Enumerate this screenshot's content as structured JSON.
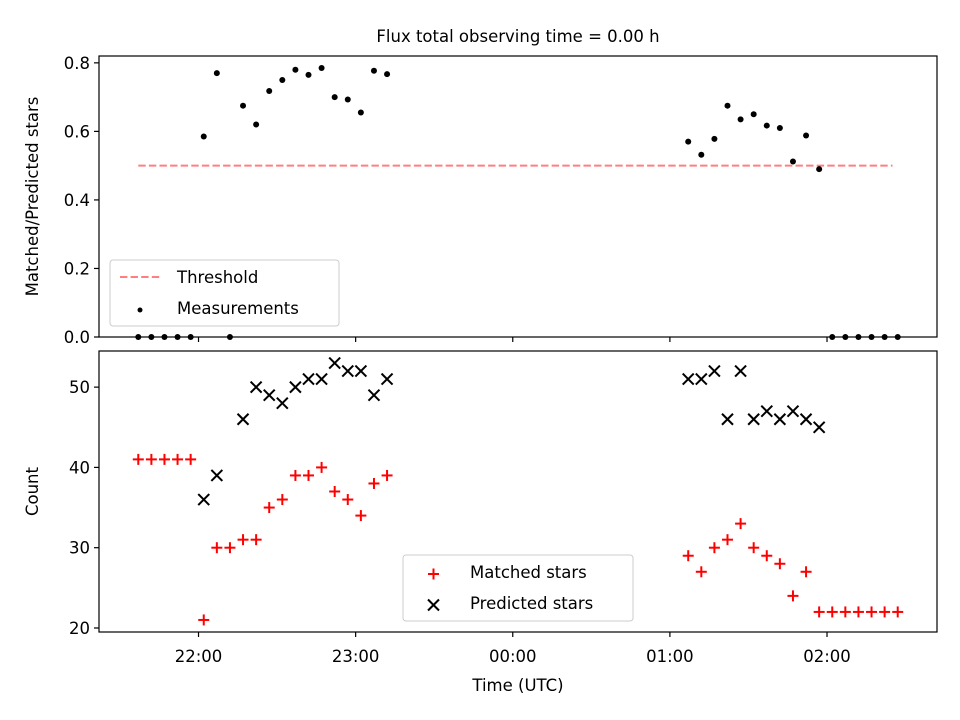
{
  "figure": {
    "title": "Flux total observing time = 0.00 h"
  },
  "chart_data": [
    {
      "type": "scatter",
      "panel": "top",
      "title": "Flux total observing time = 0.00 h",
      "xlabel": "",
      "ylabel": "Matched/Predicted stars",
      "xlim": [
        "21:22",
        "02:42"
      ],
      "ylim": [
        0,
        0.82
      ],
      "yticks": [
        0.0,
        0.2,
        0.4,
        0.6,
        0.8
      ],
      "ytick_labels": [
        "0.0",
        "0.2",
        "0.4",
        "0.6",
        "0.8"
      ],
      "xticks": [
        "22:00",
        "23:00",
        "00:00",
        "01:00",
        "02:00"
      ],
      "show_xtick_labels": false,
      "grid": false,
      "legend": "lower-left",
      "threshold": {
        "name": "Threshold",
        "y": 0.5,
        "x_start": "21:37",
        "x_end": "02:25",
        "color": "#ff7f7f",
        "style": "dashed"
      },
      "series": [
        {
          "name": "Measurements",
          "color": "#000000",
          "marker": "dot",
          "points": [
            [
              "21:37",
              0.0
            ],
            [
              "21:42",
              0.0
            ],
            [
              "21:47",
              0.0
            ],
            [
              "21:52",
              0.0
            ],
            [
              "21:57",
              0.0
            ],
            [
              "22:02",
              0.585
            ],
            [
              "22:07",
              0.77
            ],
            [
              "22:12",
              0.0
            ],
            [
              "22:17",
              0.675
            ],
            [
              "22:22",
              0.62
            ],
            [
              "22:27",
              0.718
            ],
            [
              "22:32",
              0.75
            ],
            [
              "22:37",
              0.78
            ],
            [
              "22:42",
              0.765
            ],
            [
              "22:47",
              0.785
            ],
            [
              "22:52",
              0.7
            ],
            [
              "22:57",
              0.693
            ],
            [
              "23:02",
              0.655
            ],
            [
              "23:07",
              0.777
            ],
            [
              "23:12",
              0.767
            ],
            [
              "01:07",
              0.57
            ],
            [
              "01:12",
              0.532
            ],
            [
              "01:17",
              0.578
            ],
            [
              "01:22",
              0.675
            ],
            [
              "01:27",
              0.635
            ],
            [
              "01:32",
              0.65
            ],
            [
              "01:37",
              0.617
            ],
            [
              "01:42",
              0.61
            ],
            [
              "01:47",
              0.512
            ],
            [
              "01:52",
              0.588
            ],
            [
              "01:57",
              0.49
            ],
            [
              "02:02",
              0.0
            ],
            [
              "02:07",
              0.0
            ],
            [
              "02:12",
              0.0
            ],
            [
              "02:17",
              0.0
            ],
            [
              "02:22",
              0.0
            ],
            [
              "02:27",
              0.0
            ]
          ]
        }
      ],
      "legend_entries": [
        "Threshold",
        "Measurements"
      ]
    },
    {
      "type": "scatter",
      "panel": "bottom",
      "xlabel": "Time (UTC)",
      "ylabel": "Count",
      "xlim": [
        "21:22",
        "02:42"
      ],
      "ylim": [
        19.5,
        54.5
      ],
      "yticks": [
        20,
        30,
        40,
        50
      ],
      "ytick_labels": [
        "20",
        "30",
        "40",
        "50"
      ],
      "xticks": [
        "22:00",
        "23:00",
        "00:00",
        "01:00",
        "02:00"
      ],
      "xtick_labels": [
        "22:00",
        "23:00",
        "00:00",
        "01:00",
        "02:00"
      ],
      "grid": false,
      "legend": "lower-center",
      "series": [
        {
          "name": "Matched stars",
          "color": "#ff0000",
          "marker": "plus",
          "points": [
            [
              "21:37",
              41
            ],
            [
              "21:42",
              41
            ],
            [
              "21:47",
              41
            ],
            [
              "21:52",
              41
            ],
            [
              "21:57",
              41
            ],
            [
              "22:02",
              21
            ],
            [
              "22:07",
              30
            ],
            [
              "22:12",
              30
            ],
            [
              "22:17",
              31
            ],
            [
              "22:22",
              31
            ],
            [
              "22:27",
              35
            ],
            [
              "22:32",
              36
            ],
            [
              "22:37",
              39
            ],
            [
              "22:42",
              39
            ],
            [
              "22:47",
              40
            ],
            [
              "22:52",
              37
            ],
            [
              "22:57",
              36
            ],
            [
              "23:02",
              34
            ],
            [
              "23:07",
              38
            ],
            [
              "23:12",
              39
            ],
            [
              "01:07",
              29
            ],
            [
              "01:12",
              27
            ],
            [
              "01:17",
              30
            ],
            [
              "01:22",
              31
            ],
            [
              "01:27",
              33
            ],
            [
              "01:32",
              30
            ],
            [
              "01:37",
              29
            ],
            [
              "01:42",
              28
            ],
            [
              "01:47",
              24
            ],
            [
              "01:52",
              27
            ],
            [
              "01:57",
              22
            ],
            [
              "02:02",
              22
            ],
            [
              "02:07",
              22
            ],
            [
              "02:12",
              22
            ],
            [
              "02:17",
              22
            ],
            [
              "02:22",
              22
            ],
            [
              "02:27",
              22
            ]
          ]
        },
        {
          "name": "Predicted stars",
          "color": "#000000",
          "marker": "x",
          "points": [
            [
              "22:02",
              36
            ],
            [
              "22:07",
              39
            ],
            [
              "22:17",
              46
            ],
            [
              "22:22",
              50
            ],
            [
              "22:27",
              49
            ],
            [
              "22:32",
              48
            ],
            [
              "22:37",
              50
            ],
            [
              "22:42",
              51
            ],
            [
              "22:47",
              51
            ],
            [
              "22:52",
              53
            ],
            [
              "22:57",
              52
            ],
            [
              "23:02",
              52
            ],
            [
              "23:07",
              49
            ],
            [
              "23:12",
              51
            ],
            [
              "01:07",
              51
            ],
            [
              "01:12",
              51
            ],
            [
              "01:17",
              52
            ],
            [
              "01:22",
              46
            ],
            [
              "01:27",
              52
            ],
            [
              "01:32",
              46
            ],
            [
              "01:37",
              47
            ],
            [
              "01:42",
              46
            ],
            [
              "01:47",
              47
            ],
            [
              "01:52",
              46
            ],
            [
              "01:57",
              45
            ]
          ]
        }
      ],
      "legend_entries": [
        "Matched stars",
        "Predicted stars"
      ]
    }
  ]
}
